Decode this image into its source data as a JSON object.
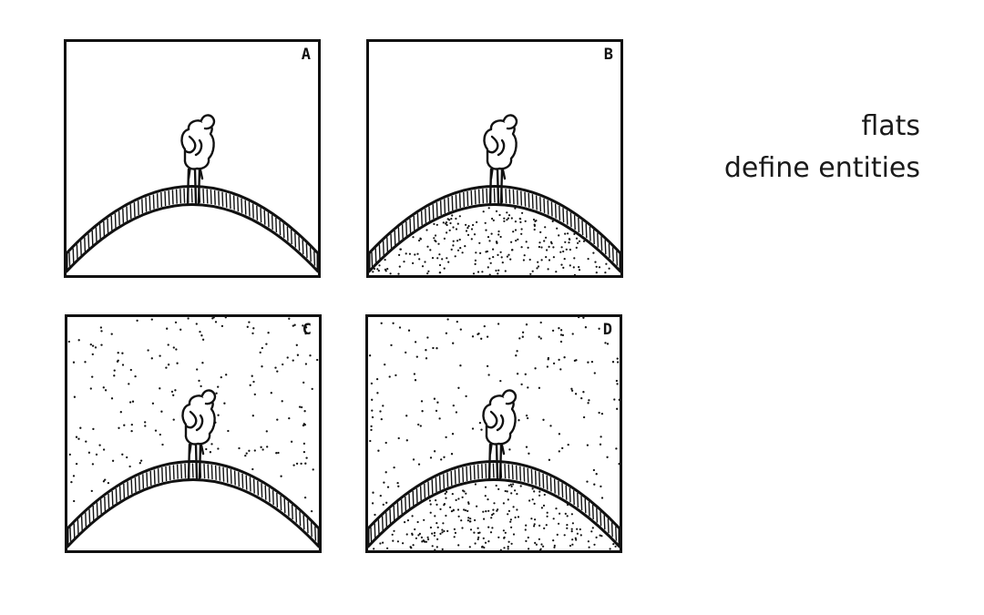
{
  "panels": [
    {
      "id": "a",
      "label": "A",
      "sky_dotted": false,
      "hill_dotted": false
    },
    {
      "id": "b",
      "label": "B",
      "sky_dotted": false,
      "hill_dotted": true
    },
    {
      "id": "c",
      "label": "C",
      "sky_dotted": true,
      "hill_dotted": false
    },
    {
      "id": "d",
      "label": "D",
      "sky_dotted": true,
      "hill_dotted": true
    }
  ],
  "caption": {
    "line1": "flats",
    "line2": "define entities"
  },
  "colors": {
    "ink": "#111111",
    "paper": "#ffffff"
  }
}
